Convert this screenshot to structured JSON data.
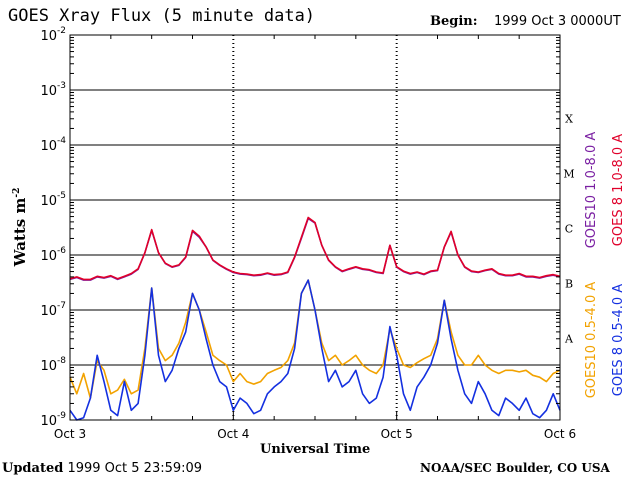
{
  "header": {
    "title": "GOES Xray Flux (5 minute data)",
    "begin_label": "Begin:",
    "begin_value": "1999 Oct 3 0000UT"
  },
  "footer": {
    "updated_label": "Updated",
    "updated_value": "1999 Oct  5 23:59:09",
    "credit": "NOAA/SEC Boulder, CO USA"
  },
  "chart_data": {
    "type": "line",
    "title": "GOES Xray Flux (5 minute data)",
    "xlabel": "Universal Time",
    "ylabel": "Watts m",
    "ylabel_exp": "-2",
    "yscale": "log",
    "ylim": [
      1e-09,
      0.01
    ],
    "y_ticks": [
      {
        "base": "10",
        "exp": "-9",
        "value": 1e-09
      },
      {
        "base": "10",
        "exp": "-8",
        "value": 1e-08
      },
      {
        "base": "10",
        "exp": "-7",
        "value": 1e-07
      },
      {
        "base": "10",
        "exp": "-6",
        "value": 1e-06
      },
      {
        "base": "10",
        "exp": "-5",
        "value": 1e-05
      },
      {
        "base": "10",
        "exp": "-4",
        "value": 0.0001
      },
      {
        "base": "10",
        "exp": "-3",
        "value": 0.001
      },
      {
        "base": "10",
        "exp": "-2",
        "value": 0.01
      }
    ],
    "xlim": [
      0,
      72
    ],
    "x_unit": "hours since 1999 Oct 3 00:00 UT",
    "x_ticks": [
      {
        "label": "Oct 3",
        "value": 0
      },
      {
        "label": "Oct 4",
        "value": 24
      },
      {
        "label": "Oct 5",
        "value": 48
      },
      {
        "label": "Oct 6",
        "value": 72
      }
    ],
    "flare_classes": [
      {
        "label": "A",
        "value": 1e-08
      },
      {
        "label": "B",
        "value": 1e-07
      },
      {
        "label": "C",
        "value": 1e-06
      },
      {
        "label": "M",
        "value": 1e-05
      },
      {
        "label": "X",
        "value": 0.0001
      }
    ],
    "grid": true,
    "legend": [
      {
        "label": "GOES10 1.0-8.0 A",
        "color": "#7a1fa2"
      },
      {
        "label": "GOES 8 1.0-8.0 A",
        "color": "#e0002a"
      },
      {
        "label": "GOES10 0.5-4.0 A",
        "color": "#f2a200"
      },
      {
        "label": "GOES 8 0.5-4.0 A",
        "color": "#1430e0"
      }
    ],
    "series": [
      {
        "name": "GOES10 1.0-8.0 A",
        "color": "#7a1fa2",
        "x": [
          0,
          1,
          2,
          3,
          4,
          5,
          6,
          7,
          8,
          9,
          10,
          11,
          12,
          13,
          14,
          15,
          16,
          17,
          18,
          19,
          20,
          21,
          22,
          23,
          24,
          25,
          26,
          27,
          28,
          29,
          30,
          31,
          32,
          33,
          34,
          35,
          36,
          37,
          38,
          39,
          40,
          41,
          42,
          43,
          44,
          45,
          46,
          47,
          48,
          49,
          50,
          51,
          52,
          53,
          54,
          55,
          56,
          57,
          58,
          59,
          60,
          61,
          62,
          63,
          64,
          65,
          66,
          67,
          68,
          69,
          70,
          71,
          72
        ],
        "y": [
          3.6e-07,
          3.9e-07,
          3.5e-07,
          3.5e-07,
          4e-07,
          3.8e-07,
          4.1e-07,
          3.6e-07,
          4e-07,
          4.5e-07,
          5.5e-07,
          1.1e-06,
          2.8e-06,
          1.1e-06,
          7e-07,
          6e-07,
          6.5e-07,
          9e-07,
          2.7e-06,
          2.1e-06,
          1.4e-06,
          8e-07,
          6.5e-07,
          5.5e-07,
          4.8e-07,
          4.5e-07,
          4.4e-07,
          4.2e-07,
          4.3e-07,
          4.6e-07,
          4.3e-07,
          4.4e-07,
          4.8e-07,
          9e-07,
          2e-06,
          4.6e-06,
          3.8e-06,
          1.5e-06,
          8e-07,
          6e-07,
          5e-07,
          5.5e-07,
          6e-07,
          5.5e-07,
          5.3e-07,
          4.8e-07,
          4.6e-07,
          1.5e-06,
          6e-07,
          5e-07,
          4.5e-07,
          4.8e-07,
          4.4e-07,
          5e-07,
          5.2e-07,
          1.4e-06,
          2.6e-06,
          1e-06,
          6e-07,
          5e-07,
          4.8e-07,
          5.2e-07,
          5.5e-07,
          4.5e-07,
          4.2e-07,
          4.2e-07,
          4.5e-07,
          4e-07,
          4e-07,
          3.8e-07,
          4.1e-07,
          4.3e-07,
          4e-07
        ]
      },
      {
        "name": "GOES 8 1.0-8.0 A",
        "color": "#e0002a",
        "x": [
          0,
          1,
          2,
          3,
          4,
          5,
          6,
          7,
          8,
          9,
          10,
          11,
          12,
          13,
          14,
          15,
          16,
          17,
          18,
          19,
          20,
          21,
          22,
          23,
          24,
          25,
          26,
          27,
          28,
          29,
          30,
          31,
          32,
          33,
          34,
          35,
          36,
          37,
          38,
          39,
          40,
          41,
          42,
          43,
          44,
          45,
          46,
          47,
          48,
          49,
          50,
          51,
          52,
          53,
          54,
          55,
          56,
          57,
          58,
          59,
          60,
          61,
          62,
          63,
          64,
          65,
          66,
          67,
          68,
          69,
          70,
          71,
          72
        ],
        "y": [
          3.7e-07,
          4e-07,
          3.6e-07,
          3.6e-07,
          4.1e-07,
          3.9e-07,
          4.2e-07,
          3.7e-07,
          4.1e-07,
          4.6e-07,
          5.6e-07,
          1.1e-06,
          2.9e-06,
          1.1e-06,
          7.1e-07,
          6.1e-07,
          6.6e-07,
          9.2e-07,
          2.8e-06,
          2.2e-06,
          1.4e-06,
          8.1e-07,
          6.6e-07,
          5.6e-07,
          4.9e-07,
          4.6e-07,
          4.5e-07,
          4.3e-07,
          4.4e-07,
          4.7e-07,
          4.4e-07,
          4.5e-07,
          4.9e-07,
          9.2e-07,
          2.1e-06,
          4.8e-06,
          3.9e-06,
          1.5e-06,
          8.1e-07,
          6.1e-07,
          5.1e-07,
          5.6e-07,
          6.1e-07,
          5.6e-07,
          5.4e-07,
          4.9e-07,
          4.7e-07,
          1.5e-06,
          6.1e-07,
          5.1e-07,
          4.6e-07,
          4.9e-07,
          4.5e-07,
          5.1e-07,
          5.3e-07,
          1.4e-06,
          2.7e-06,
          1e-06,
          6.1e-07,
          5.1e-07,
          4.9e-07,
          5.3e-07,
          5.6e-07,
          4.6e-07,
          4.3e-07,
          4.3e-07,
          4.6e-07,
          4.1e-07,
          4.1e-07,
          3.9e-07,
          4.2e-07,
          4.4e-07,
          4.1e-07
        ]
      },
      {
        "name": "GOES10 0.5-4.0 A",
        "color": "#f2a200",
        "x": [
          0,
          1,
          2,
          3,
          4,
          5,
          6,
          7,
          8,
          9,
          10,
          11,
          12,
          13,
          14,
          15,
          16,
          17,
          18,
          19,
          20,
          21,
          22,
          23,
          24,
          25,
          26,
          27,
          28,
          29,
          30,
          31,
          32,
          33,
          34,
          35,
          36,
          37,
          38,
          39,
          40,
          41,
          42,
          43,
          44,
          45,
          46,
          47,
          48,
          49,
          50,
          51,
          52,
          53,
          54,
          55,
          56,
          57,
          58,
          59,
          60,
          61,
          62,
          63,
          64,
          65,
          66,
          67,
          68,
          69,
          70,
          71,
          72
        ],
        "y": [
          6e-09,
          3e-09,
          7e-09,
          2.5e-09,
          1.2e-08,
          8e-09,
          3e-09,
          3.5e-09,
          5.5e-09,
          3e-09,
          3.5e-09,
          2e-08,
          2.5e-07,
          2e-08,
          1.2e-08,
          1.5e-08,
          2.5e-08,
          6e-08,
          2e-07,
          1e-07,
          4e-08,
          1.5e-08,
          1.2e-08,
          1e-08,
          5e-09,
          7e-09,
          5e-09,
          4.5e-09,
          5e-09,
          7e-09,
          8e-09,
          9e-09,
          1.2e-08,
          2.5e-08,
          2e-07,
          3.5e-07,
          1e-07,
          2.5e-08,
          1.2e-08,
          1.5e-08,
          1e-08,
          1.2e-08,
          1.5e-08,
          1e-08,
          8e-09,
          7e-09,
          1e-08,
          4.5e-08,
          2e-08,
          1e-08,
          9e-09,
          1.1e-08,
          1.3e-08,
          1.5e-08,
          3e-08,
          1.5e-07,
          4e-08,
          1.5e-08,
          1e-08,
          1e-08,
          1.5e-08,
          1e-08,
          8e-09,
          7e-09,
          8e-09,
          8e-09,
          7.5e-09,
          8e-09,
          6.5e-09,
          6e-09,
          5e-09,
          7e-09,
          8e-09
        ]
      },
      {
        "name": "GOES 8 0.5-4.0 A",
        "color": "#1430e0",
        "x": [
          0,
          1,
          2,
          3,
          4,
          5,
          6,
          7,
          8,
          9,
          10,
          11,
          12,
          13,
          14,
          15,
          16,
          17,
          18,
          19,
          20,
          21,
          22,
          23,
          24,
          25,
          26,
          27,
          28,
          29,
          30,
          31,
          32,
          33,
          34,
          35,
          36,
          37,
          38,
          39,
          40,
          41,
          42,
          43,
          44,
          45,
          46,
          47,
          48,
          49,
          50,
          51,
          52,
          53,
          54,
          55,
          56,
          57,
          58,
          59,
          60,
          61,
          62,
          63,
          64,
          65,
          66,
          67,
          68,
          69,
          70,
          71,
          72
        ],
        "y": [
          1.5e-09,
          1e-09,
          1.1e-09,
          2.5e-09,
          1.5e-08,
          5e-09,
          1.5e-09,
          1.2e-09,
          5e-09,
          1.5e-09,
          2e-09,
          1.5e-08,
          2.5e-07,
          1.5e-08,
          5e-09,
          8e-09,
          2e-08,
          4e-08,
          2e-07,
          1e-07,
          3e-08,
          1e-08,
          5e-09,
          4e-09,
          1.5e-09,
          2.5e-09,
          2e-09,
          1.3e-09,
          1.5e-09,
          3e-09,
          4e-09,
          5e-09,
          7e-09,
          2e-08,
          2e-07,
          3.5e-07,
          1e-07,
          2e-08,
          5e-09,
          8e-09,
          4e-09,
          5e-09,
          8e-09,
          3e-09,
          2e-09,
          2.5e-09,
          6e-09,
          5e-08,
          1.5e-08,
          3e-09,
          1.5e-09,
          4e-09,
          6e-09,
          1e-08,
          2.5e-08,
          1.5e-07,
          3e-08,
          8e-09,
          3e-09,
          2e-09,
          5e-09,
          3e-09,
          1.5e-09,
          1.2e-09,
          2.5e-09,
          2e-09,
          1.5e-09,
          2.5e-09,
          1.3e-09,
          1.1e-09,
          1.5e-09,
          3e-09,
          1.5e-09
        ]
      }
    ]
  }
}
